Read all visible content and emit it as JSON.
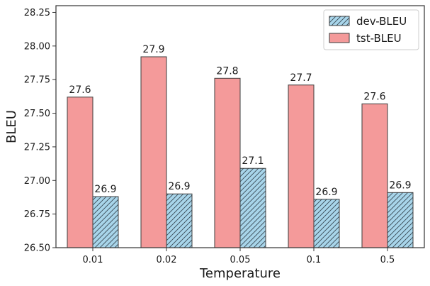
{
  "chart_data": {
    "type": "bar",
    "xlabel": "Temperature",
    "ylabel": "BLEU",
    "categories": [
      "0.01",
      "0.02",
      "0.05",
      "0.1",
      "0.5"
    ],
    "ylim": [
      26.5,
      28.3
    ],
    "yticks": [
      "26.50",
      "26.75",
      "27.00",
      "27.25",
      "27.50",
      "27.75",
      "28.00",
      "28.25"
    ],
    "ytick_values": [
      26.5,
      26.75,
      27.0,
      27.25,
      27.5,
      27.75,
      28.0,
      28.25
    ],
    "legend_position": "top-right",
    "grid": false,
    "series": [
      {
        "name": "tst-BLEU",
        "values": [
          27.62,
          27.92,
          27.76,
          27.71,
          27.57
        ],
        "labels": [
          "27.6",
          "27.9",
          "27.8",
          "27.7",
          "27.6"
        ],
        "color": "#f49a9a",
        "hatch": false
      },
      {
        "name": "dev-BLEU",
        "values": [
          26.88,
          26.9,
          27.09,
          26.86,
          26.91
        ],
        "labels": [
          "26.9",
          "26.9",
          "27.1",
          "26.9",
          "26.9"
        ],
        "color": "#a8d5ea",
        "hatch": true
      }
    ],
    "legend_order": [
      "dev-BLEU",
      "tst-BLEU"
    ]
  }
}
